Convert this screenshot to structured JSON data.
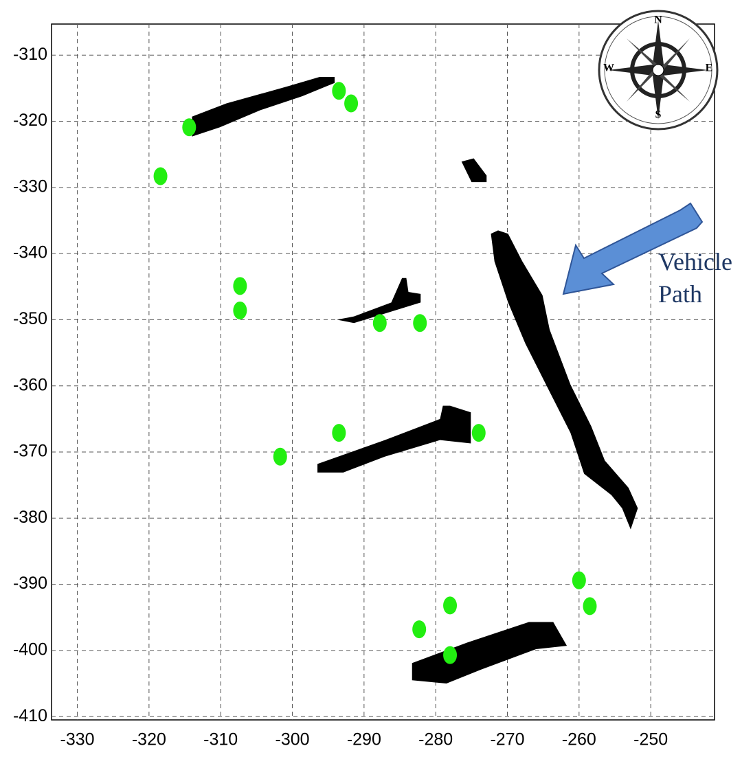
{
  "chart_data": {
    "type": "scatter",
    "xlim": [
      -333.6,
      -241.1
    ],
    "ylim": [
      -410.5,
      -305.3
    ],
    "xticks": [
      -330,
      -320,
      -310,
      -300,
      -290,
      -280,
      -270,
      -260,
      -250
    ],
    "yticks": [
      -310,
      -320,
      -330,
      -340,
      -350,
      -360,
      -370,
      -380,
      -390,
      -400,
      -410
    ],
    "grid": true,
    "series": [
      {
        "color": "#22ee11",
        "x": [
          -314.4,
          -318.4,
          -293.5,
          -291.8,
          -307.3,
          -307.3,
          -287.8,
          -282.2,
          -293.5,
          -274.0,
          -301.7,
          -260.0,
          -258.5,
          -278.0,
          -282.3,
          -278.0
        ],
        "values": [
          -320.9,
          -328.3,
          -315.4,
          -317.3,
          -344.9,
          -348.6,
          -350.5,
          -350.5,
          -367.1,
          -367.1,
          -370.7,
          -389.4,
          -393.3,
          -393.2,
          -396.8,
          -400.7
        ]
      }
    ],
    "regions": [
      {
        "color": "#000000",
        "x": [
          -314.0,
          -314.0,
          -309.2,
          -300.6,
          -296.2,
          -294.1,
          -294.1,
          -298.6,
          -304.4,
          -310.1
        ],
        "y": [
          -322.3,
          -319.3,
          -317.3,
          -314.7,
          -313.3,
          -313.3,
          -314.2,
          -316.2,
          -318.3,
          -320.9
        ]
      },
      {
        "color": "#000000",
        "x": [
          -272.3,
          -271.8,
          -269.9,
          -267.5,
          -264.1,
          -261.2,
          -259.3,
          -255.5,
          -254.0,
          -252.8,
          -251.8,
          -253.1,
          -256.4,
          -258.3,
          -261.2,
          -264.1,
          -265.1,
          -267.9,
          -269.9,
          -271.3
        ],
        "y": [
          -337.0,
          -341.2,
          -347.4,
          -353.6,
          -360.9,
          -367.1,
          -373.3,
          -376.5,
          -378.5,
          -381.7,
          -378.5,
          -375.4,
          -371.3,
          -366.1,
          -359.8,
          -351.5,
          -346.3,
          -341.2,
          -337.0,
          -336.5
        ]
      },
      {
        "color": "#000000",
        "x": [
          -293.8,
          -291.4,
          -286.2,
          -284.7,
          -284.1,
          -283.8,
          -282.1,
          -282.1,
          -286.6,
          -291.4
        ],
        "y": [
          -350.0,
          -349.5,
          -347.4,
          -343.7,
          -343.7,
          -345.8,
          -346.1,
          -347.4,
          -348.9,
          -350.5
        ]
      },
      {
        "color": "#000000",
        "x": [
          -296.5,
          -296.5,
          -287.1,
          -279.4,
          -279.0,
          -278.0,
          -275.1,
          -275.1,
          -279.4,
          -287.1,
          -292.9
        ],
        "y": [
          -373.1,
          -371.8,
          -368.2,
          -365.0,
          -363.0,
          -363.0,
          -364.0,
          -368.7,
          -368.2,
          -370.7,
          -373.1
        ]
      },
      {
        "color": "#000000",
        "x": [
          -283.3,
          -283.3,
          -275.6,
          -267.0,
          -263.6,
          -261.7,
          -266.0,
          -273.7,
          -278.5
        ],
        "y": [
          -404.5,
          -401.9,
          -398.8,
          -395.7,
          -395.7,
          -399.3,
          -399.8,
          -402.9,
          -405.0
        ]
      },
      {
        "color": "#000000",
        "x": [
          -276.4,
          -274.7,
          -272.9,
          -272.9,
          -275.0
        ],
        "y": [
          -326.1,
          -325.6,
          -328.2,
          -329.2,
          -329.2
        ]
      }
    ],
    "annotation": [
      "Vehicle",
      "Path"
    ],
    "compass": {
      "n": "N",
      "e": "E",
      "s": "S",
      "w": "W"
    }
  }
}
